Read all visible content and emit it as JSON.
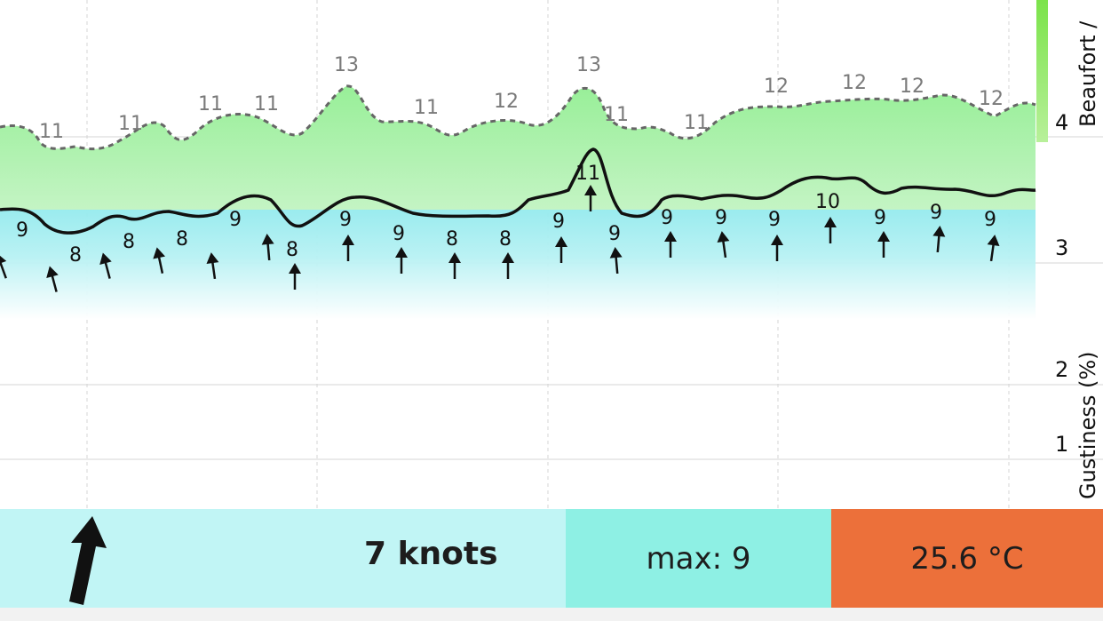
{
  "chart_data": {
    "type": "line",
    "x": [
      0,
      1,
      2,
      3,
      4,
      5,
      6,
      7,
      8,
      9,
      10,
      11,
      12,
      13,
      14,
      15,
      16,
      17,
      18,
      19
    ],
    "wind_values": [
      9,
      8,
      8,
      8,
      9,
      8,
      9,
      9,
      8,
      8,
      9,
      11,
      9,
      9,
      9,
      9,
      10,
      9,
      9,
      9
    ],
    "wind_label_values": [
      "9",
      "8",
      "8",
      "8",
      "9",
      "8",
      "9",
      "9",
      "8",
      "8",
      "9",
      "11",
      "9",
      "9",
      "9",
      "9",
      "10",
      "9",
      "9",
      "9"
    ],
    "gust_label_values": [
      "11",
      "11",
      "11",
      "11",
      "13",
      "11",
      "12",
      "13",
      "11",
      "11",
      "12",
      "12",
      "12",
      "12"
    ],
    "y_axis": {
      "ticks": [
        "1",
        "2",
        "3",
        "4"
      ],
      "title": "Gustiness (%)",
      "title_2": "Beaufort /"
    },
    "grid": true
  },
  "footer": {
    "speed": "7 knots",
    "max": "max: 9",
    "temperature": "25.6 °C"
  },
  "colors": {
    "gust_area": "#a8f2a8",
    "wind_area_top": "#7ee6ea",
    "speed_panel": "#c1f5f5",
    "max_panel": "#8ef0e4",
    "temp_panel": "#ec703a",
    "beaufort_bar": "#7be34a"
  },
  "icons": {
    "direction": "arrow-up-icon"
  }
}
